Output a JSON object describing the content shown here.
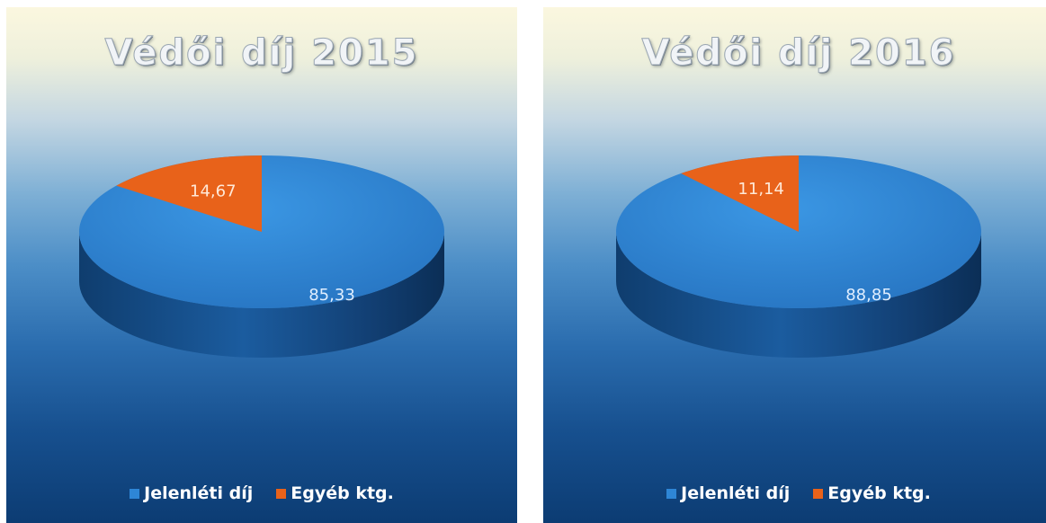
{
  "chart_data": [
    {
      "type": "pie",
      "title": "Védői díj 2015",
      "slices": [
        {
          "name": "Jelenléti díj",
          "value": 85.33,
          "label": "85,33"
        },
        {
          "name": "Egyéb ktg.",
          "value": 14.67,
          "label": "14,67"
        }
      ],
      "colors": [
        "#2e86d6",
        "#e8621a"
      ],
      "legend_position": "bottom"
    },
    {
      "type": "pie",
      "title": "Védői díj 2016",
      "slices": [
        {
          "name": "Jelenléti díj",
          "value": 88.85,
          "label": "88,85"
        },
        {
          "name": "Egyéb ktg.",
          "value": 11.14,
          "label": "11,14"
        }
      ],
      "colors": [
        "#2e86d6",
        "#e8621a"
      ],
      "legend_position": "bottom"
    }
  ]
}
